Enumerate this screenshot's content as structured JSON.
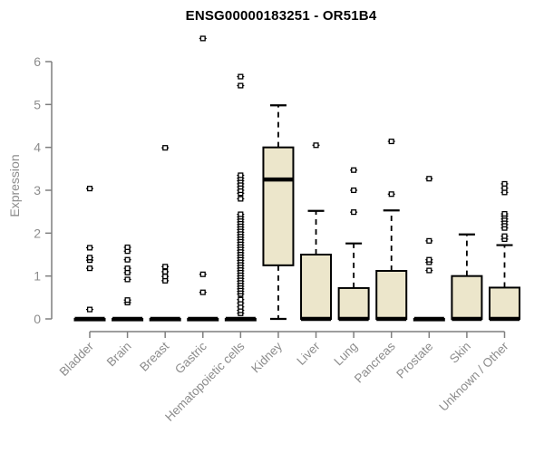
{
  "chart_data": {
    "type": "box",
    "title": "ENSG00000183251 - OR51B4",
    "ylabel": "Expression",
    "xlabel": "",
    "ylim": [
      0,
      6.6
    ],
    "yticks": [
      0,
      1,
      2,
      3,
      4,
      5,
      6
    ],
    "grid": false,
    "legend": "none",
    "categories": [
      "Bladder",
      "Brain",
      "Breast",
      "Gastric",
      "Hematopoietic cells",
      "Kidney",
      "Liver",
      "Lung",
      "Pancreas",
      "Prostate",
      "Skin",
      "Unknown / Other"
    ],
    "series": [
      {
        "category": "Bladder",
        "whisker_low": 0,
        "q1": 0,
        "median": 0,
        "q3": 0,
        "whisker_high": 0,
        "outliers": [
          0.22,
          1.18,
          1.37,
          1.43,
          1.66,
          3.04
        ]
      },
      {
        "category": "Brain",
        "whisker_low": 0,
        "q1": 0,
        "median": 0,
        "q3": 0,
        "whisker_high": 0,
        "outliers": [
          0.38,
          0.44,
          0.92,
          1.08,
          1.18,
          1.38,
          1.58,
          1.67
        ]
      },
      {
        "category": "Breast",
        "whisker_low": 0,
        "q1": 0,
        "median": 0,
        "q3": 0,
        "whisker_high": 0,
        "outliers": [
          0.89,
          0.99,
          1.1,
          1.22,
          3.99
        ]
      },
      {
        "category": "Gastric",
        "whisker_low": 0,
        "q1": 0,
        "median": 0,
        "q3": 0,
        "whisker_high": 0,
        "outliers": [
          0.62,
          1.04,
          6.54
        ]
      },
      {
        "category": "Hematopoietic cells",
        "whisker_low": 0,
        "q1": 0,
        "median": 0,
        "q3": 0,
        "whisker_high": 0,
        "outliers": [
          0.13,
          0.2,
          0.28,
          0.37,
          0.45,
          0.58,
          0.64,
          0.7,
          0.76,
          0.82,
          0.88,
          0.94,
          1.0,
          1.06,
          1.12,
          1.18,
          1.24,
          1.3,
          1.36,
          1.42,
          1.48,
          1.54,
          1.6,
          1.66,
          1.72,
          1.78,
          1.84,
          1.9,
          1.96,
          2.02,
          2.08,
          2.14,
          2.2,
          2.26,
          2.32,
          2.38,
          2.44,
          2.8,
          2.93,
          3.0,
          3.08,
          3.15,
          3.22,
          3.28,
          3.35,
          5.44,
          5.65
        ]
      },
      {
        "category": "Kidney",
        "whisker_low": 0,
        "q1": 1.25,
        "median": 3.25,
        "q3": 4.0,
        "whisker_high": 4.98,
        "outliers": []
      },
      {
        "category": "Liver",
        "whisker_low": 0,
        "q1": 0,
        "median": 0,
        "q3": 1.5,
        "whisker_high": 2.52,
        "outliers": [
          4.05
        ]
      },
      {
        "category": "Lung",
        "whisker_low": 0,
        "q1": 0,
        "median": 0,
        "q3": 0.72,
        "whisker_high": 1.76,
        "outliers": [
          2.49,
          3.0,
          3.47
        ]
      },
      {
        "category": "Pancreas",
        "whisker_low": 0,
        "q1": 0,
        "median": 0,
        "q3": 1.12,
        "whisker_high": 2.53,
        "outliers": [
          2.91,
          4.14
        ]
      },
      {
        "category": "Prostate",
        "whisker_low": 0,
        "q1": 0,
        "median": 0,
        "q3": 0,
        "whisker_high": 0,
        "outliers": [
          1.13,
          1.32,
          1.38,
          1.82,
          3.27
        ]
      },
      {
        "category": "Skin",
        "whisker_low": 0,
        "q1": 0,
        "median": 0,
        "q3": 1.0,
        "whisker_high": 1.97,
        "outliers": []
      },
      {
        "category": "Unknown / Other",
        "whisker_low": 0,
        "q1": 0,
        "median": 0,
        "q3": 0.73,
        "whisker_high": 1.72,
        "outliers": [
          1.86,
          1.93,
          2.12,
          2.2,
          2.27,
          2.33,
          2.4,
          2.45,
          2.95,
          3.05,
          3.15
        ]
      }
    ],
    "colors": {
      "box_fill": "#ECE6CB",
      "box_border": "#000000",
      "median": "#000000",
      "whisker": "#000000",
      "axis": "#7f7f7f",
      "tick_label": "#8c8c8c",
      "title": "#000000",
      "background": "#ffffff"
    }
  }
}
